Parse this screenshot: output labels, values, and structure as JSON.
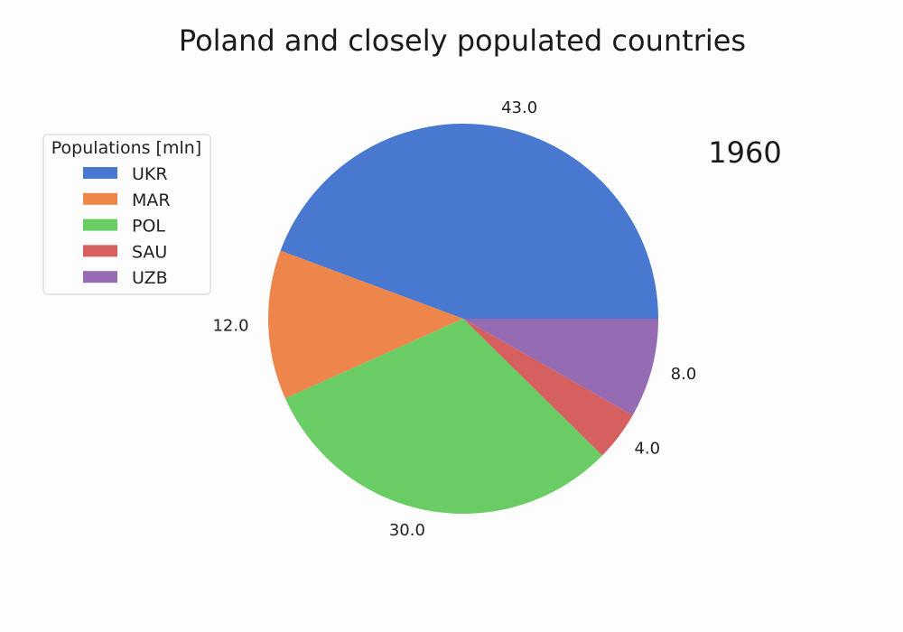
{
  "chart_data": {
    "type": "pie",
    "title": "Poland and closely populated countries",
    "annotation": "1960",
    "legend": {
      "title": "Populations [mln]",
      "placement": "upper-left"
    },
    "categories": [
      "UKR",
      "MAR",
      "POL",
      "SAU",
      "UZB"
    ],
    "values": [
      43.0,
      12.0,
      30.0,
      4.0,
      8.0
    ],
    "value_labels": [
      "43.0",
      "12.0",
      "30.0",
      "4.0",
      "8.0"
    ],
    "colors": [
      "#4878d0",
      "#ee854a",
      "#6acc64",
      "#d65f5f",
      "#956cb4"
    ],
    "start_angle_deg": 0,
    "direction": "counterclockwise"
  }
}
